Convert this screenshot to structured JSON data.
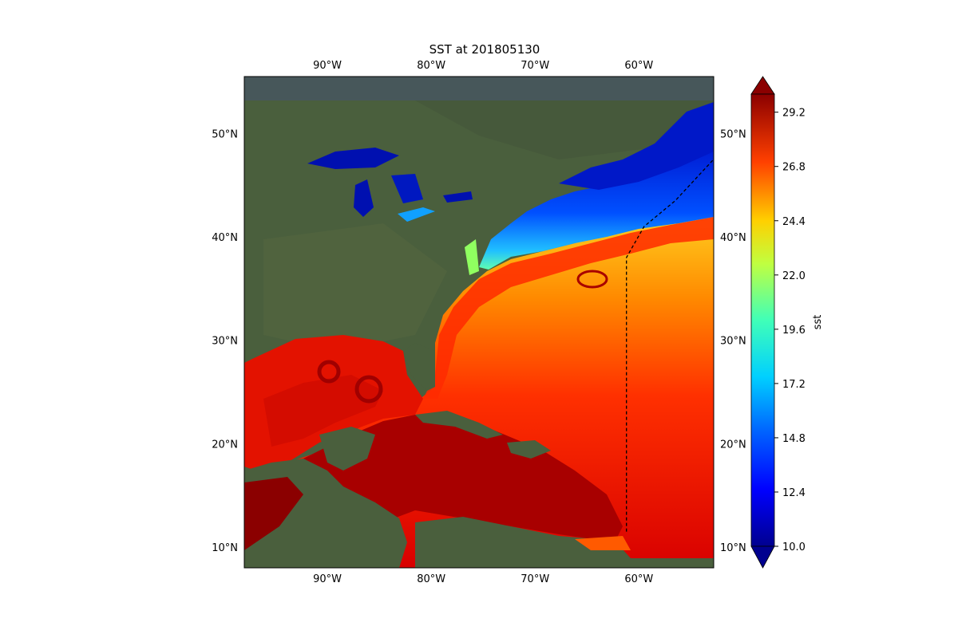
{
  "map": {
    "title": "SST at 201805130",
    "colorbar_label": "sst",
    "lon_ticks": [
      {
        "lon": -90,
        "label": "90°W"
      },
      {
        "lon": -80,
        "label": "80°W"
      },
      {
        "lon": -70,
        "label": "70°W"
      },
      {
        "lon": -60,
        "label": "60°W"
      }
    ],
    "lat_ticks": [
      {
        "lat": 50,
        "label": "50°N"
      },
      {
        "lat": 40,
        "label": "40°N"
      },
      {
        "lat": 30,
        "label": "30°N"
      },
      {
        "lat": 20,
        "label": "20°N"
      },
      {
        "lat": 10,
        "label": "10°N"
      }
    ],
    "extent": {
      "lon_min": -98,
      "lon_max": -52.8,
      "lat_min": 8,
      "lat_max": 55.5
    },
    "colorbar": {
      "min": 10.0,
      "max": 30.0,
      "extend": "both",
      "colormap": "jet",
      "ticks": [
        "10.0",
        "12.4",
        "14.8",
        "17.2",
        "19.6",
        "22.0",
        "24.4",
        "26.8",
        "29.2"
      ]
    },
    "track": [
      {
        "lon": -61.2,
        "lat": 11.5
      },
      {
        "lon": -61.2,
        "lat": 38.0
      },
      {
        "lon": -59.5,
        "lat": 41.0
      },
      {
        "lon": -56.5,
        "lat": 43.5
      },
      {
        "lon": -52.8,
        "lat": 47.5
      }
    ],
    "track_style": "dashed",
    "colors": {
      "land": "#4a5f3d",
      "gulf_stream": "#ff2a00",
      "tropics": "#a80000",
      "cold_shelf": "#0032ff"
    }
  }
}
